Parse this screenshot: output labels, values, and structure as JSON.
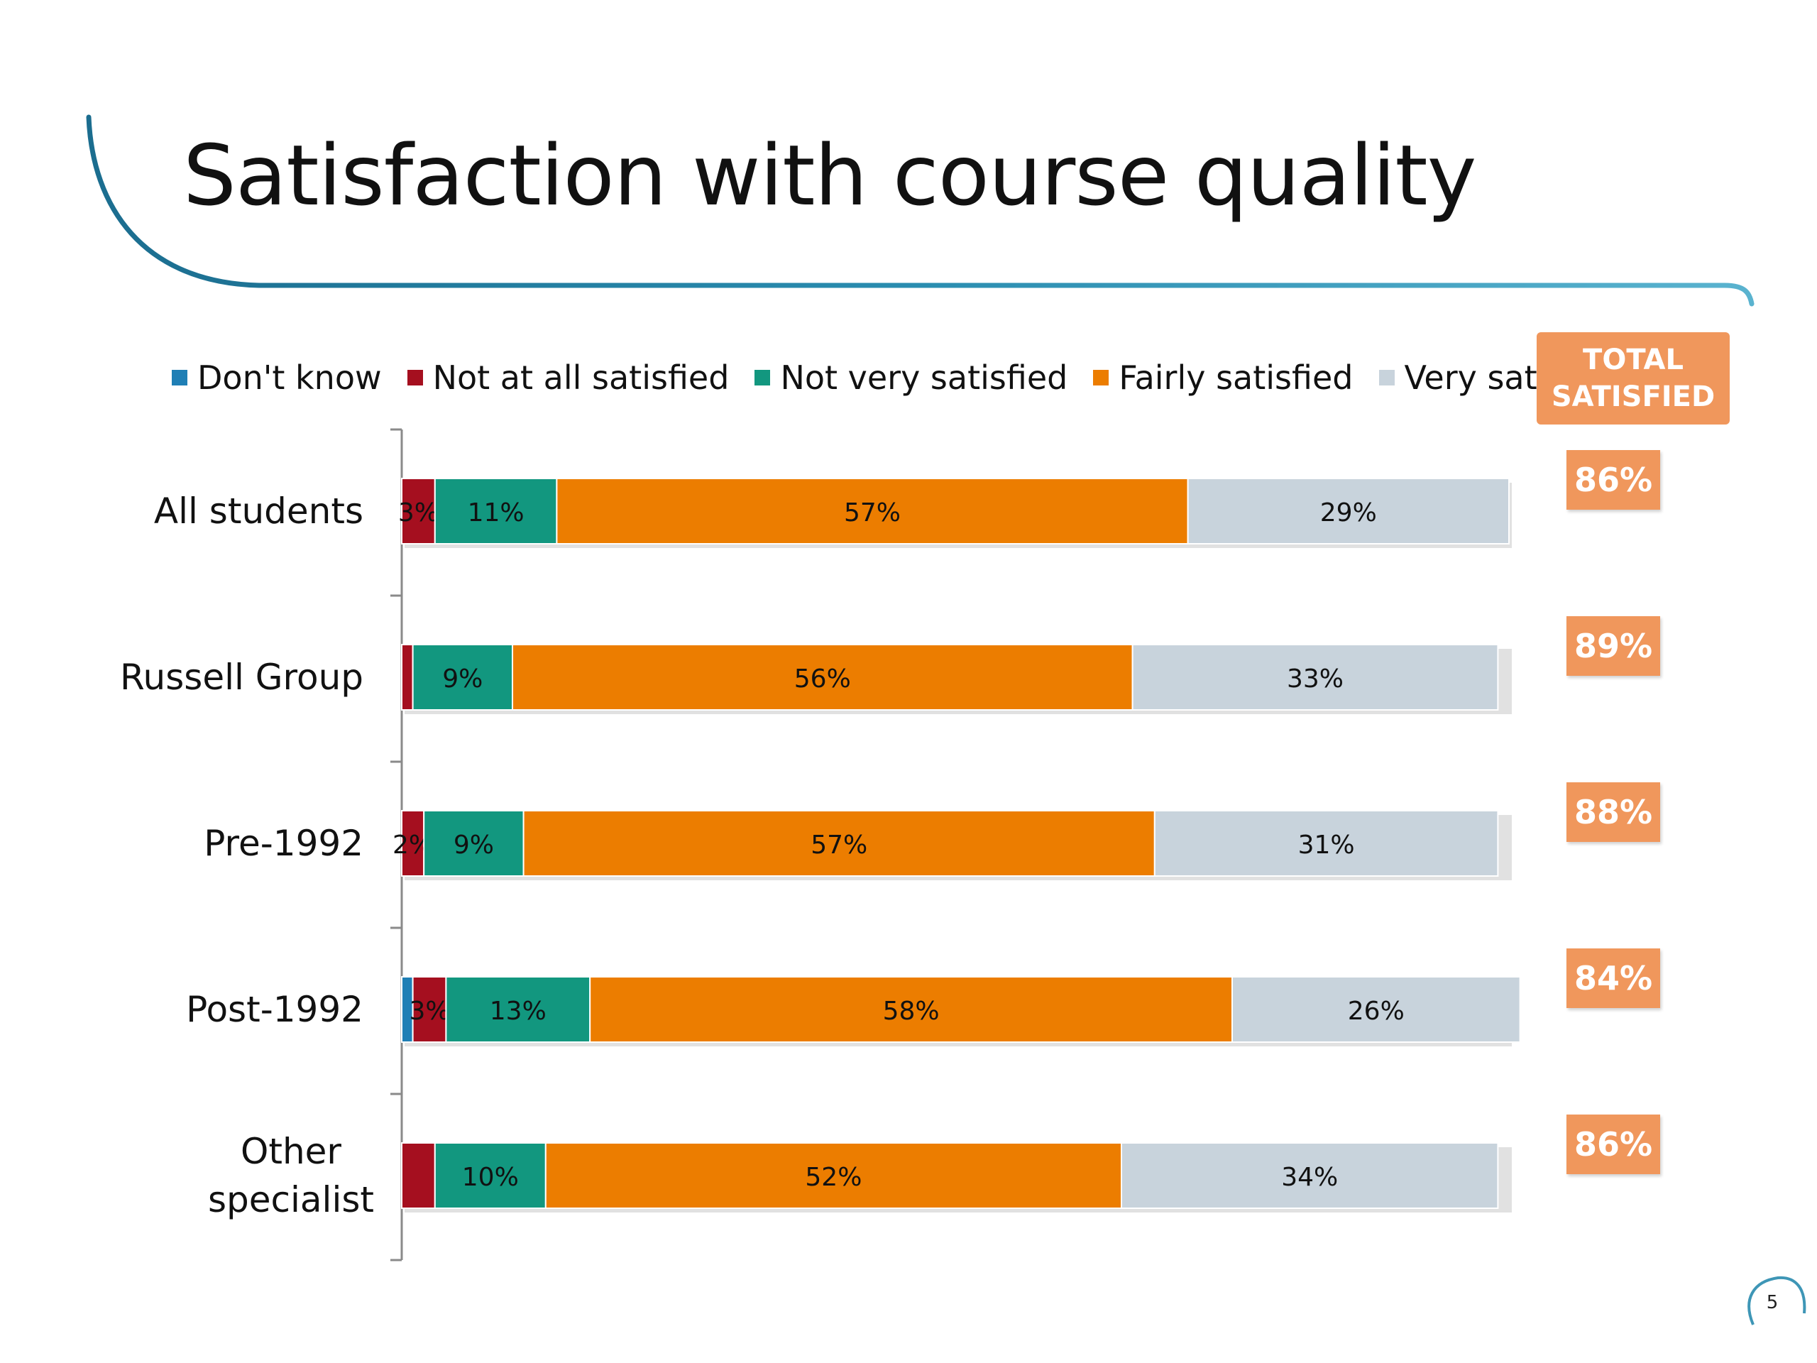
{
  "title": "Satisfaction with course quality",
  "total_header": [
    "TOTAL",
    "SATISFIED"
  ],
  "page_number": "5",
  "chart_data": {
    "type": "bar",
    "orientation": "horizontal",
    "stacked": true,
    "categories": [
      "All students",
      "Russell Group",
      "Pre-1992",
      "Post-1992",
      "Other specialist"
    ],
    "series": [
      {
        "name": "Don't know",
        "color": "#1F7FB5",
        "values": [
          0,
          0,
          0,
          1,
          0
        ],
        "labels": [
          "",
          "",
          "",
          "",
          ""
        ]
      },
      {
        "name": "Not at all satisfied",
        "color": "#A50F1F",
        "values": [
          3,
          1,
          2,
          3,
          3
        ],
        "labels": [
          "3%",
          "",
          "2%",
          "3%",
          ""
        ]
      },
      {
        "name": "Not very satisfied",
        "color": "#12977F",
        "values": [
          11,
          9,
          9,
          13,
          10
        ],
        "labels": [
          "11%",
          "9%",
          "9%",
          "13%",
          "10%"
        ]
      },
      {
        "name": "Fairly satisfied",
        "color": "#EC7D00",
        "values": [
          57,
          56,
          57,
          58,
          52
        ],
        "labels": [
          "57%",
          "56%",
          "57%",
          "58%",
          "52%"
        ]
      },
      {
        "name": "Very satisfied",
        "color": "#C8D3DC",
        "values": [
          29,
          33,
          31,
          26,
          34
        ],
        "labels": [
          "29%",
          "33%",
          "31%",
          "26%",
          "34%"
        ]
      }
    ],
    "xlim": [
      0,
      100
    ],
    "grid": false,
    "legend": "top",
    "total_satisfied": [
      "86%",
      "89%",
      "88%",
      "84%",
      "86%"
    ],
    "total_color": "#F0975C"
  }
}
